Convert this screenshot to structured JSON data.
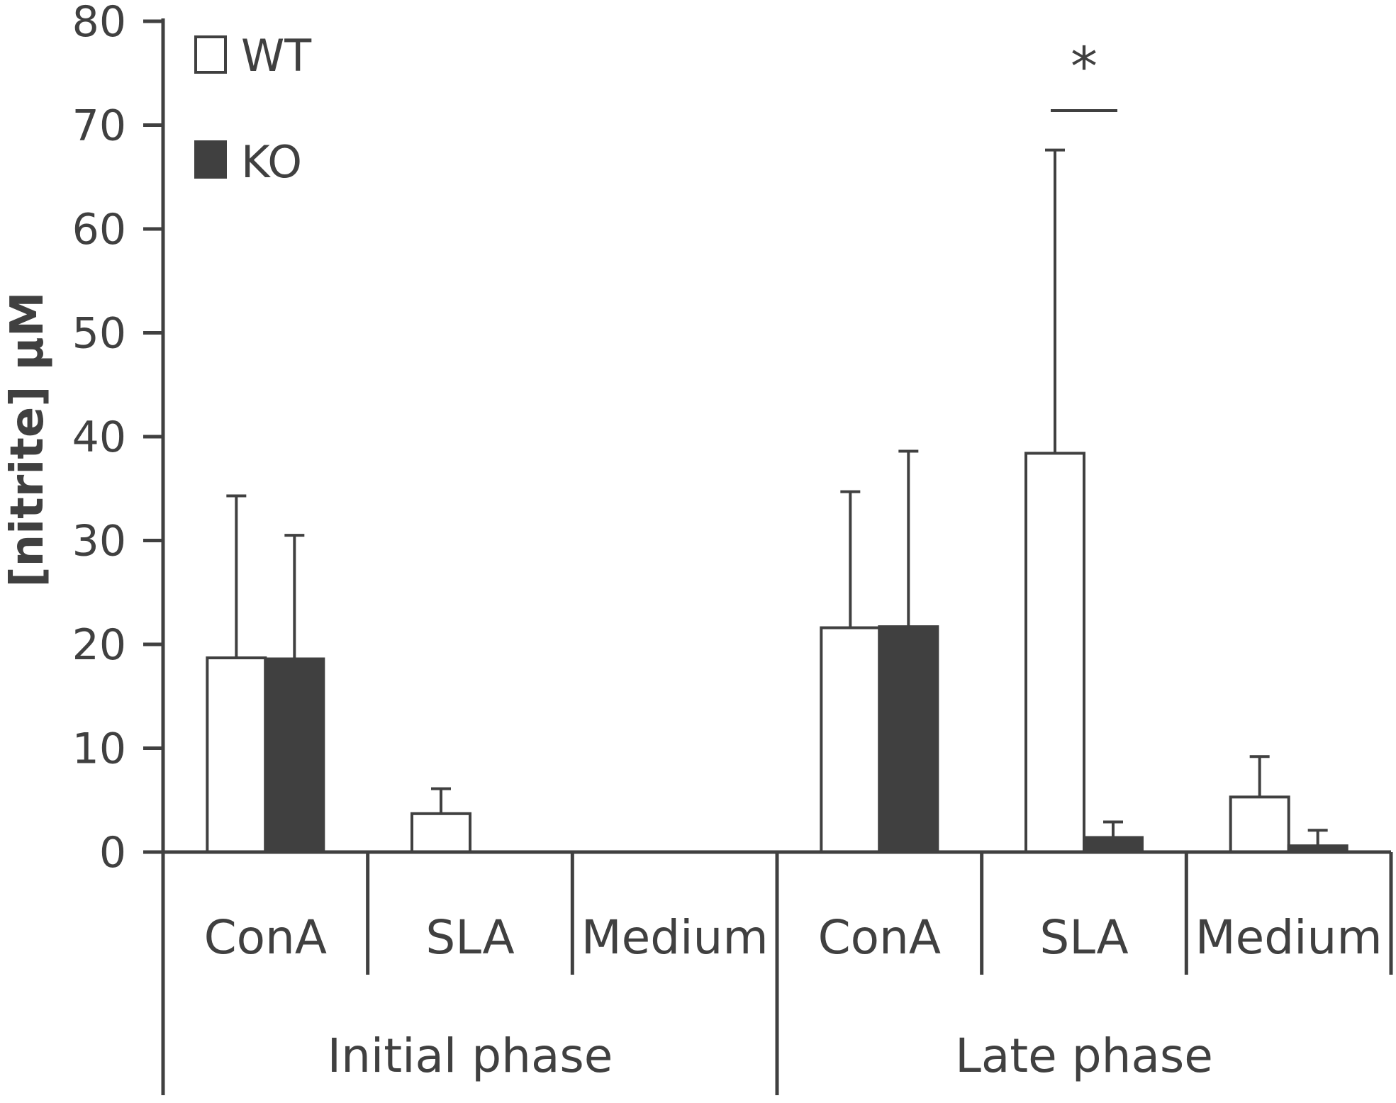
{
  "chart_data": {
    "type": "bar",
    "ylabel": "[nitrite] µM",
    "ylim": [
      0,
      80
    ],
    "yticks": [
      0,
      10,
      20,
      30,
      40,
      50,
      60,
      70,
      80
    ],
    "groups": [
      {
        "label": "Initial phase",
        "categories": [
          "ConA",
          "SLA",
          "Medium"
        ]
      },
      {
        "label": "Late phase",
        "categories": [
          "ConA",
          "SLA",
          "Medium"
        ]
      }
    ],
    "series": [
      {
        "name": "WT",
        "color": "#ffffff",
        "values": [
          18.7,
          3.7,
          0,
          21.6,
          38.4,
          5.3
        ],
        "errors": [
          15.6,
          2.4,
          0,
          13.1,
          29.2,
          3.9
        ]
      },
      {
        "name": "KO",
        "color": "#404040",
        "values": [
          18.6,
          0,
          0,
          21.7,
          1.4,
          0.6
        ],
        "errors": [
          11.9,
          0,
          0,
          16.9,
          1.5,
          1.5
        ]
      }
    ],
    "annotations": [
      {
        "text": "*",
        "category_index": 4
      }
    ]
  },
  "colors": {
    "axis": "#404040",
    "text": "#404040"
  }
}
